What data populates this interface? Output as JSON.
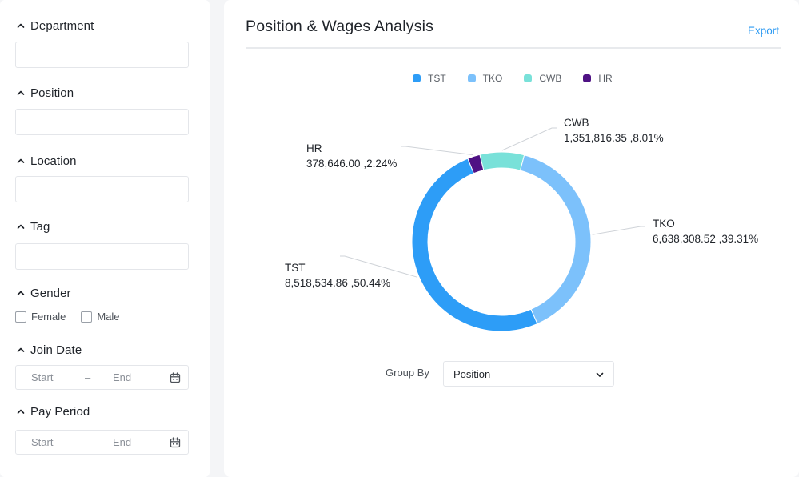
{
  "filters": {
    "department": {
      "label": "Department",
      "value": ""
    },
    "position": {
      "label": "Position",
      "value": ""
    },
    "location": {
      "label": "Location",
      "value": ""
    },
    "tag": {
      "label": "Tag",
      "value": ""
    },
    "gender": {
      "label": "Gender",
      "options": [
        {
          "label": "Female",
          "checked": false
        },
        {
          "label": "Male",
          "checked": false
        }
      ]
    },
    "join_date": {
      "label": "Join Date",
      "start_placeholder": "Start",
      "separator": "–",
      "end_placeholder": "End",
      "icon": "calendar-icon"
    },
    "pay_period": {
      "label": "Pay Period",
      "start_placeholder": "Start",
      "separator": "–",
      "end_placeholder": "End",
      "icon": "calendar-icon"
    }
  },
  "card": {
    "title": "Position & Wages Analysis",
    "export_label": "Export",
    "group_by": {
      "label": "Group By",
      "value": "Position",
      "icon": "chevron-down-icon"
    }
  },
  "colors": {
    "TST": "#2d9df7",
    "TKO": "#7cc1fb",
    "CWB": "#79e1d9",
    "HR": "#4f1284",
    "accent": "#2f9bf2"
  },
  "chart_data": {
    "type": "pie",
    "style": "donut",
    "legend": [
      "TST",
      "TKO",
      "CWB",
      "HR"
    ],
    "legend_position": "top",
    "slices": [
      {
        "name": "CWB",
        "value": 1351816.35,
        "value_label": "1,351,816.35",
        "percent_label": "8.01%"
      },
      {
        "name": "TKO",
        "value": 6638308.52,
        "value_label": "6,638,308.52",
        "percent_label": "39.31%"
      },
      {
        "name": "TST",
        "value": 8518534.86,
        "value_label": "8,518,534.86",
        "percent_label": "50.44%"
      },
      {
        "name": "HR",
        "value": 378646.0,
        "value_label": "378,646.00",
        "percent_label": "2.24%"
      }
    ],
    "label_separator": " ,"
  }
}
